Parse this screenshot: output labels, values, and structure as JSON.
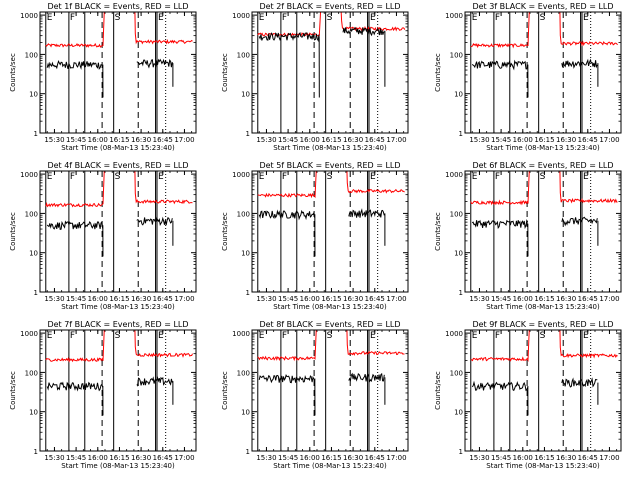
{
  "chart_data": {
    "type": "line",
    "y_scale": "log",
    "ylim": [
      1,
      1200
    ],
    "xlim": [
      "15:20",
      "17:08"
    ],
    "x_ticks": [
      "15:30",
      "15:45",
      "16:00",
      "16:15",
      "16:30",
      "16:45",
      "17:00"
    ],
    "y_ticks": [
      "1",
      "10",
      "100",
      "1000"
    ],
    "ylabel": "Counts/sec",
    "xlabel": "Start Time (08-Mar-13 15:23:40)",
    "series_colors": {
      "events": "#000000",
      "lld": "#ff0000"
    },
    "markers": [
      {
        "label": "E",
        "time": "15:24",
        "style": "solid"
      },
      {
        "label": "F",
        "time": "15:40",
        "style": "solid"
      },
      {
        "label": "",
        "time": "15:51",
        "style": "solid"
      },
      {
        "label": "",
        "time": "16:03",
        "style": "dashed"
      },
      {
        "label": "S",
        "time": "16:11",
        "style": "solid"
      },
      {
        "label": "",
        "time": "16:28",
        "style": "dashed"
      },
      {
        "label": "",
        "time": "16:40",
        "style": "solid"
      },
      {
        "label": "E",
        "time": "16:41",
        "style": "solid"
      },
      {
        "label": "",
        "time": "16:47",
        "style": "dotted"
      }
    ],
    "panels": [
      {
        "title": "Det 1f BLACK = Events, RED = LLD",
        "events_before": 55,
        "lld_before": 170,
        "events_after": 60,
        "lld_after": 210,
        "gap": [
          "16:04",
          "16:26"
        ],
        "saturation": 1000
      },
      {
        "title": "Det 2f BLACK = Events, RED = LLD",
        "events_before": 290,
        "lld_before": 320,
        "events_after": 400,
        "lld_after": 450,
        "gap": [
          "16:07",
          "16:22"
        ],
        "saturation": 1000
      },
      {
        "title": "Det 3f BLACK = Events, RED = LLD",
        "events_before": 55,
        "lld_before": 170,
        "events_after": 60,
        "lld_after": 190,
        "gap": [
          "16:04",
          "16:26"
        ],
        "saturation": 1000
      },
      {
        "title": "Det 4f BLACK = Events, RED = LLD",
        "events_before": 50,
        "lld_before": 165,
        "events_after": 65,
        "lld_after": 200,
        "gap": [
          "16:04",
          "16:26"
        ],
        "saturation": 1000
      },
      {
        "title": "Det 5f BLACK = Events, RED = LLD",
        "events_before": 95,
        "lld_before": 290,
        "events_after": 100,
        "lld_after": 370,
        "gap": [
          "16:04",
          "16:26"
        ],
        "saturation": 1000
      },
      {
        "title": "Det 6f BLACK = Events, RED = LLD",
        "events_before": 55,
        "lld_before": 190,
        "events_after": 65,
        "lld_after": 210,
        "gap": [
          "16:04",
          "16:26"
        ],
        "saturation": 1000
      },
      {
        "title": "Det 7f BLACK = Events, RED = LLD",
        "events_before": 45,
        "lld_before": 210,
        "events_after": 60,
        "lld_after": 280,
        "gap": [
          "16:04",
          "16:26"
        ],
        "saturation": 1000
      },
      {
        "title": "Det 8f BLACK = Events, RED = LLD",
        "events_before": 70,
        "lld_before": 230,
        "events_after": 75,
        "lld_after": 310,
        "gap": [
          "16:04",
          "16:26"
        ],
        "saturation": 1000
      },
      {
        "title": "Det 9f BLACK = Events, RED = LLD",
        "events_before": 45,
        "lld_before": 220,
        "events_after": 55,
        "lld_after": 270,
        "gap": [
          "16:04",
          "16:26"
        ],
        "saturation": 1000
      }
    ]
  }
}
